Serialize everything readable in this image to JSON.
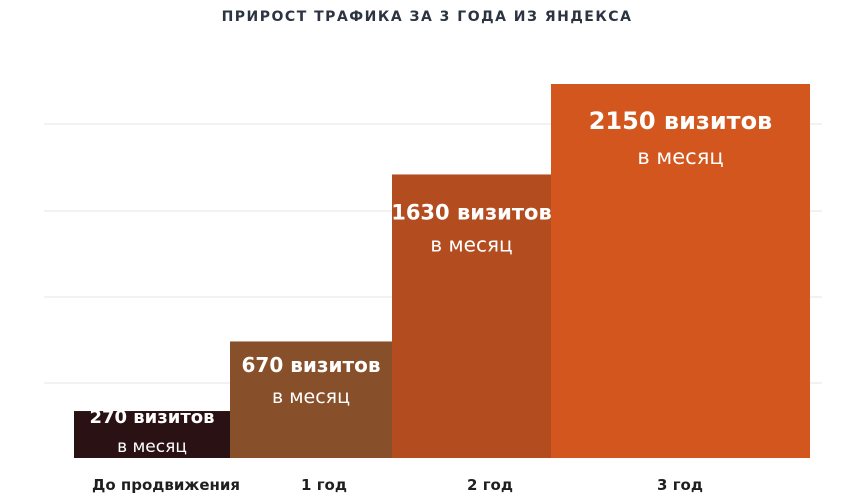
{
  "chart_data": {
    "type": "bar",
    "title": "ПРИРОСТ ТРАФИКА ЗА 3 ГОДА ИЗ ЯНДЕКСА",
    "xlabel": "",
    "ylabel": "",
    "categories": [
      "До продвижения",
      "1 год",
      "2 год",
      "3 год"
    ],
    "values": [
      270,
      670,
      1630,
      2150
    ],
    "value_labels": [
      "270 визитов",
      "670 визитов",
      "1630 визитов",
      "2150 визитов"
    ],
    "unit_label": "в месяц",
    "colors": [
      "#2a1214",
      "#88502a",
      "#b34d20",
      "#d2561d"
    ],
    "gridline_color": "#e4e4e4",
    "grid": true,
    "legend": "none"
  }
}
